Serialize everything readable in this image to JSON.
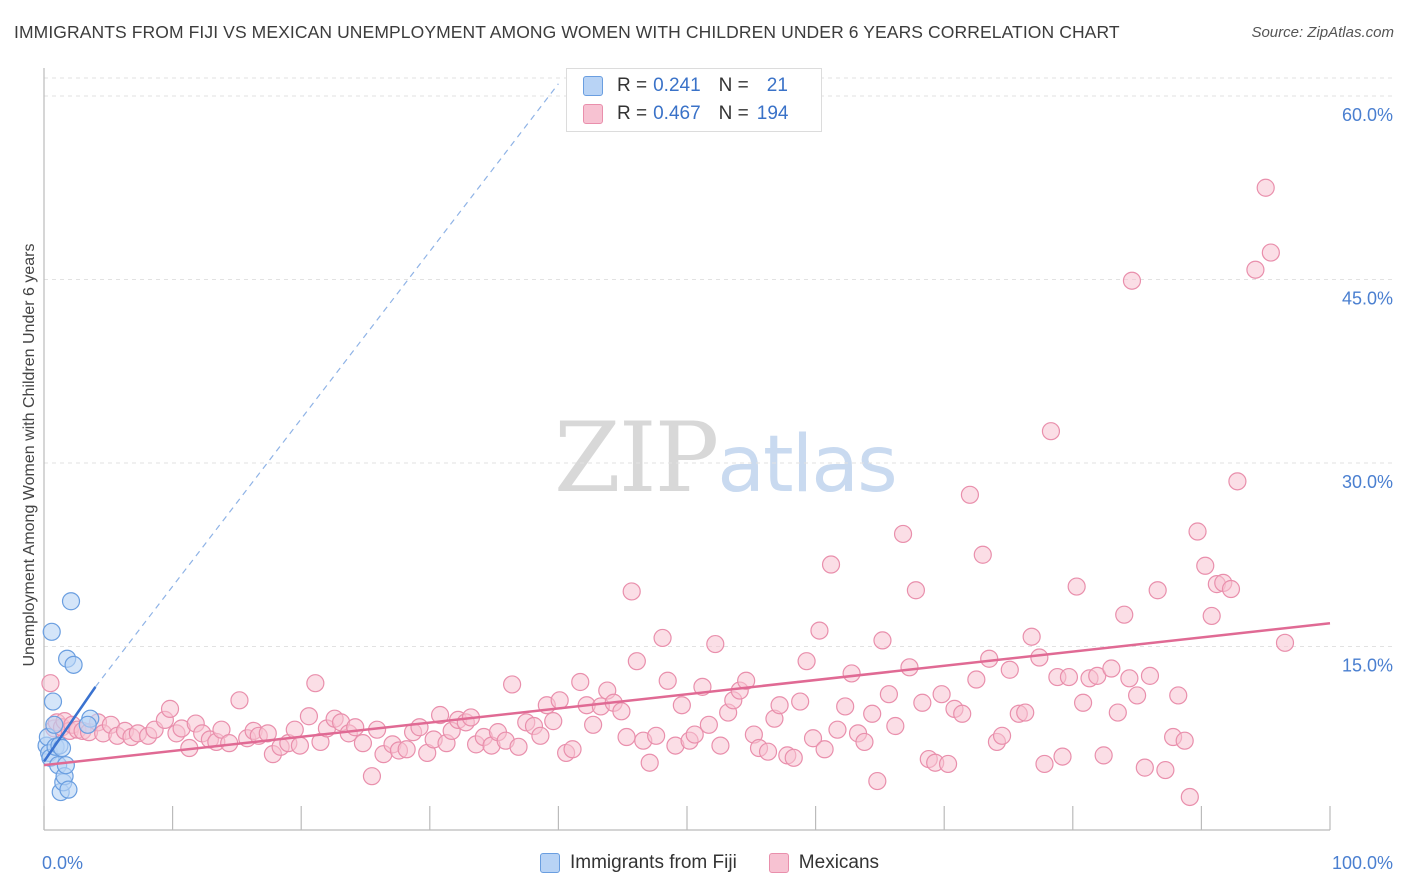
{
  "title": "IMMIGRANTS FROM FIJI VS MEXICAN UNEMPLOYMENT AMONG WOMEN WITH CHILDREN UNDER 6 YEARS CORRELATION CHART",
  "source": "Source: ZipAtlas.com",
  "watermark": {
    "zip": "ZIP",
    "atlas": "atlas"
  },
  "legend": {
    "r_label": "R =",
    "n_label": "N =",
    "fiji": {
      "r": "0.241",
      "n": "21"
    },
    "mexicans": {
      "r": "0.467",
      "n": "194"
    }
  },
  "colors": {
    "fiji_fill": "#b8d3f5",
    "fiji_stroke": "#6a9ee0",
    "fiji_line": "#3a72d0",
    "mex_fill": "#f7c2d2",
    "mex_stroke": "#e98fac",
    "mex_line": "#e06a94",
    "grid": "#e2e2e2",
    "tick_text": "#4a7fd0"
  },
  "chart_data": {
    "type": "scatter",
    "title": "IMMIGRANTS FROM FIJI VS MEXICAN UNEMPLOYMENT AMONG WOMEN WITH CHILDREN UNDER 6 YEARS CORRELATION CHART",
    "xlabel": "",
    "ylabel": "Unemployment Among Women with Children Under 6 years",
    "xlim": [
      0,
      100
    ],
    "ylim": [
      0,
      60
    ],
    "x_tick_labels": [
      "0.0%",
      "100.0%"
    ],
    "y_ticks": [
      15,
      30,
      45,
      60
    ],
    "y_tick_labels": [
      "15.0%",
      "30.0%",
      "45.0%",
      "60.0%"
    ],
    "grid": true,
    "legend_position": "top-center",
    "series": [
      {
        "name": "Immigrants from Fiji",
        "trend": {
          "x": [
            0,
            4
          ],
          "y": [
            5.6,
            11.7
          ],
          "dashed_extension_to": [
            40,
            61
          ]
        },
        "points": [
          [
            0.2,
            6.9
          ],
          [
            0.3,
            7.6
          ],
          [
            0.4,
            6.3
          ],
          [
            0.5,
            5.9
          ],
          [
            0.6,
            16.2
          ],
          [
            0.7,
            10.5
          ],
          [
            0.8,
            8.6
          ],
          [
            0.9,
            6.8
          ],
          [
            1.1,
            5.3
          ],
          [
            1.2,
            6.9
          ],
          [
            1.3,
            3.1
          ],
          [
            1.4,
            6.7
          ],
          [
            1.5,
            3.9
          ],
          [
            1.6,
            4.4
          ],
          [
            1.7,
            5.3
          ],
          [
            1.8,
            14.0
          ],
          [
            1.9,
            3.3
          ],
          [
            2.1,
            18.7
          ],
          [
            2.3,
            13.5
          ],
          [
            3.6,
            9.1
          ],
          [
            3.4,
            8.6
          ]
        ]
      },
      {
        "name": "Mexicans",
        "trend": {
          "x": [
            0,
            100
          ],
          "y": [
            5.3,
            16.9
          ]
        },
        "points": [
          [
            0.5,
            12.0
          ],
          [
            0.8,
            8.3
          ],
          [
            1.0,
            8.8
          ],
          [
            1.4,
            8.4
          ],
          [
            1.6,
            8.9
          ],
          [
            2.0,
            8.1
          ],
          [
            2.2,
            8.6
          ],
          [
            2.6,
            8.2
          ],
          [
            3.0,
            8.1
          ],
          [
            3.5,
            8.0
          ],
          [
            4.2,
            8.8
          ],
          [
            4.6,
            7.9
          ],
          [
            5.2,
            8.6
          ],
          [
            5.7,
            7.7
          ],
          [
            6.3,
            8.1
          ],
          [
            6.8,
            7.6
          ],
          [
            7.3,
            7.9
          ],
          [
            8.1,
            7.7
          ],
          [
            8.6,
            8.2
          ],
          [
            9.4,
            9.0
          ],
          [
            9.8,
            9.9
          ],
          [
            10.3,
            7.9
          ],
          [
            10.7,
            8.3
          ],
          [
            11.3,
            6.7
          ],
          [
            11.8,
            8.7
          ],
          [
            12.3,
            7.9
          ],
          [
            12.9,
            7.4
          ],
          [
            13.4,
            7.2
          ],
          [
            13.8,
            8.2
          ],
          [
            14.4,
            7.1
          ],
          [
            15.2,
            10.6
          ],
          [
            15.8,
            7.5
          ],
          [
            16.3,
            8.1
          ],
          [
            16.7,
            7.7
          ],
          [
            17.4,
            7.9
          ],
          [
            17.8,
            6.2
          ],
          [
            18.4,
            6.8
          ],
          [
            19.0,
            7.1
          ],
          [
            19.5,
            8.2
          ],
          [
            19.9,
            6.9
          ],
          [
            20.6,
            9.3
          ],
          [
            21.1,
            12.0
          ],
          [
            21.5,
            7.2
          ],
          [
            22.0,
            8.3
          ],
          [
            22.6,
            9.1
          ],
          [
            23.1,
            8.8
          ],
          [
            23.7,
            7.9
          ],
          [
            24.2,
            8.4
          ],
          [
            24.8,
            7.1
          ],
          [
            25.5,
            4.4
          ],
          [
            25.9,
            8.2
          ],
          [
            26.4,
            6.2
          ],
          [
            27.1,
            7.0
          ],
          [
            27.6,
            6.5
          ],
          [
            28.2,
            6.6
          ],
          [
            28.7,
            8.0
          ],
          [
            29.2,
            8.4
          ],
          [
            29.8,
            6.3
          ],
          [
            30.3,
            7.4
          ],
          [
            30.8,
            9.4
          ],
          [
            31.3,
            7.1
          ],
          [
            31.7,
            8.1
          ],
          [
            32.2,
            9.0
          ],
          [
            32.8,
            8.8
          ],
          [
            33.2,
            9.2
          ],
          [
            33.6,
            7.0
          ],
          [
            34.2,
            7.6
          ],
          [
            34.8,
            6.9
          ],
          [
            35.3,
            8.0
          ],
          [
            35.9,
            7.3
          ],
          [
            36.4,
            11.9
          ],
          [
            36.9,
            6.8
          ],
          [
            37.5,
            8.8
          ],
          [
            38.1,
            8.5
          ],
          [
            38.6,
            7.7
          ],
          [
            39.1,
            10.2
          ],
          [
            39.6,
            8.9
          ],
          [
            40.1,
            10.6
          ],
          [
            40.6,
            6.3
          ],
          [
            41.1,
            6.6
          ],
          [
            41.7,
            12.1
          ],
          [
            42.2,
            10.2
          ],
          [
            42.7,
            8.6
          ],
          [
            43.3,
            10.1
          ],
          [
            43.8,
            11.4
          ],
          [
            44.3,
            10.4
          ],
          [
            44.9,
            9.7
          ],
          [
            45.3,
            7.6
          ],
          [
            45.7,
            19.5
          ],
          [
            46.1,
            13.8
          ],
          [
            46.6,
            7.3
          ],
          [
            47.1,
            5.5
          ],
          [
            47.6,
            7.7
          ],
          [
            48.1,
            15.7
          ],
          [
            48.5,
            12.2
          ],
          [
            49.1,
            6.9
          ],
          [
            49.6,
            10.2
          ],
          [
            50.2,
            7.3
          ],
          [
            50.6,
            7.8
          ],
          [
            51.2,
            11.7
          ],
          [
            51.7,
            8.6
          ],
          [
            52.2,
            15.2
          ],
          [
            52.6,
            6.9
          ],
          [
            53.2,
            9.6
          ],
          [
            53.6,
            10.6
          ],
          [
            54.1,
            11.4
          ],
          [
            54.6,
            12.2
          ],
          [
            55.2,
            7.8
          ],
          [
            55.6,
            6.7
          ],
          [
            56.3,
            6.4
          ],
          [
            56.8,
            9.1
          ],
          [
            57.2,
            10.2
          ],
          [
            57.8,
            6.1
          ],
          [
            58.3,
            5.9
          ],
          [
            58.8,
            10.5
          ],
          [
            59.3,
            13.8
          ],
          [
            59.8,
            7.5
          ],
          [
            60.3,
            16.3
          ],
          [
            60.7,
            6.6
          ],
          [
            61.2,
            21.7
          ],
          [
            61.7,
            8.2
          ],
          [
            62.3,
            10.1
          ],
          [
            62.8,
            12.8
          ],
          [
            63.3,
            7.9
          ],
          [
            63.8,
            7.2
          ],
          [
            64.4,
            9.5
          ],
          [
            64.8,
            4.0
          ],
          [
            65.2,
            15.5
          ],
          [
            65.7,
            11.1
          ],
          [
            66.2,
            8.5
          ],
          [
            66.8,
            24.2
          ],
          [
            67.3,
            13.3
          ],
          [
            67.8,
            19.6
          ],
          [
            68.3,
            10.4
          ],
          [
            68.8,
            5.8
          ],
          [
            69.3,
            5.5
          ],
          [
            69.8,
            11.1
          ],
          [
            70.3,
            5.4
          ],
          [
            70.8,
            9.9
          ],
          [
            71.4,
            9.5
          ],
          [
            72.0,
            27.4
          ],
          [
            72.5,
            12.3
          ],
          [
            73.0,
            22.5
          ],
          [
            73.5,
            14.0
          ],
          [
            74.1,
            7.2
          ],
          [
            74.5,
            7.7
          ],
          [
            75.1,
            13.1
          ],
          [
            75.8,
            9.5
          ],
          [
            76.3,
            9.6
          ],
          [
            76.8,
            15.8
          ],
          [
            77.4,
            14.1
          ],
          [
            77.8,
            5.4
          ],
          [
            78.3,
            32.6
          ],
          [
            78.8,
            12.5
          ],
          [
            79.2,
            6.0
          ],
          [
            79.7,
            12.5
          ],
          [
            80.3,
            19.9
          ],
          [
            80.8,
            10.4
          ],
          [
            81.3,
            12.4
          ],
          [
            81.9,
            12.6
          ],
          [
            82.4,
            6.1
          ],
          [
            83.0,
            13.2
          ],
          [
            83.5,
            9.6
          ],
          [
            84.0,
            17.6
          ],
          [
            84.4,
            12.4
          ],
          [
            85.0,
            11.0
          ],
          [
            85.6,
            5.1
          ],
          [
            86.0,
            12.6
          ],
          [
            86.6,
            19.6
          ],
          [
            87.2,
            4.9
          ],
          [
            87.8,
            7.6
          ],
          [
            88.2,
            11.0
          ],
          [
            88.7,
            7.3
          ],
          [
            89.1,
            2.7
          ],
          [
            89.7,
            24.4
          ],
          [
            90.3,
            21.6
          ],
          [
            90.8,
            17.5
          ],
          [
            91.2,
            20.1
          ],
          [
            91.7,
            20.2
          ],
          [
            92.3,
            19.7
          ],
          [
            94.2,
            45.8
          ],
          [
            95.0,
            52.5
          ],
          [
            95.4,
            47.2
          ],
          [
            96.5,
            15.3
          ],
          [
            92.8,
            28.5
          ],
          [
            84.6,
            44.9
          ]
        ]
      }
    ]
  }
}
